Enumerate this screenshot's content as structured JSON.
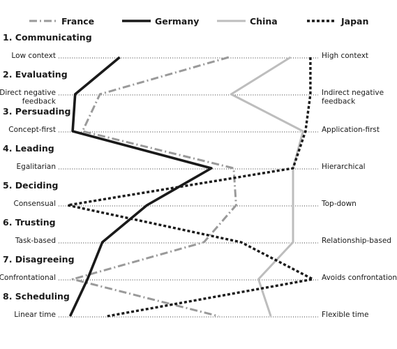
{
  "chart_data": {
    "type": "line",
    "title": "",
    "xlabel": "",
    "ylabel": "",
    "xlim": [
      0,
      10
    ],
    "legend_position": "top",
    "grid": false,
    "dimensions": [
      {
        "title": "1. Communicating",
        "left_label": [
          "Low context"
        ],
        "right_label": [
          "High context"
        ]
      },
      {
        "title": "2. Evaluating",
        "left_label": [
          "Direct negative",
          "feedback"
        ],
        "right_label": [
          "Indirect negative",
          "feedback"
        ]
      },
      {
        "title": "3. Persuading",
        "left_label": [
          "Concept-first"
        ],
        "right_label": [
          "Application-first"
        ]
      },
      {
        "title": "4. Leading",
        "left_label": [
          "Egalitarian"
        ],
        "right_label": [
          "Hierarchical"
        ]
      },
      {
        "title": "5. Deciding",
        "left_label": [
          "Consensual"
        ],
        "right_label": [
          "Top-down"
        ]
      },
      {
        "title": "6. Trusting",
        "left_label": [
          "Task-based"
        ],
        "right_label": [
          "Relationship-based"
        ]
      },
      {
        "title": "7. Disagreeing",
        "left_label": [
          "Confrontational"
        ],
        "right_label": [
          "Avoids confrontation"
        ]
      },
      {
        "title": "8. Scheduling",
        "left_label": [
          "Linear time"
        ],
        "right_label": [
          "Flexible time"
        ]
      }
    ],
    "series": [
      {
        "name": "France",
        "color": "#9a9a9a",
        "style": "dashdot",
        "values": [
          6.5,
          1.3,
          0.6,
          6.7,
          6.8,
          5.5,
          0.2,
          6.1
        ]
      },
      {
        "name": "Germany",
        "color": "#1a1a1a",
        "style": "solid",
        "values": [
          2.1,
          0.3,
          0.2,
          5.8,
          3.2,
          1.4,
          0.8,
          0.1
        ]
      },
      {
        "name": "China",
        "color": "#bdbdbd",
        "style": "solid",
        "values": [
          9.0,
          6.6,
          9.5,
          9.1,
          9.1,
          9.1,
          7.7,
          8.2
        ]
      },
      {
        "name": "Japan",
        "color": "#1a1a1a",
        "style": "dotted",
        "values": [
          9.8,
          9.8,
          9.6,
          9.1,
          0.0,
          7.0,
          9.9,
          1.6
        ]
      }
    ]
  }
}
